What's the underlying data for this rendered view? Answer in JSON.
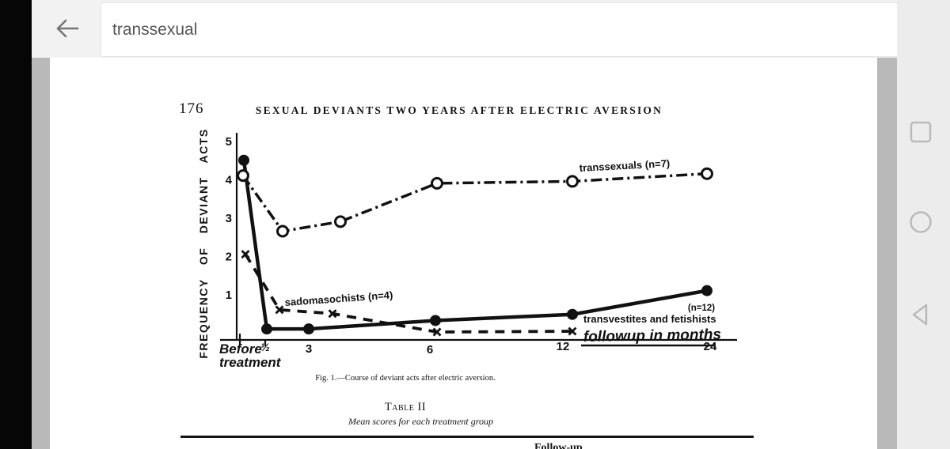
{
  "browser": {
    "search_value": "transsexual",
    "back_icon": "arrow-left-icon",
    "nav_buttons": [
      {
        "label": "recent apps",
        "icon": "square-outline-icon"
      },
      {
        "label": "home",
        "icon": "circle-outline-icon"
      },
      {
        "label": "back",
        "icon": "triangle-left-outline-icon"
      }
    ]
  },
  "page": {
    "page_number": "176",
    "running_title": "SEXUAL DEVIANTS TWO YEARS AFTER ELECTRIC AVERSION",
    "figure_caption": "Fig. 1.—Course of deviant acts after electric aversion.",
    "table_title": "Table II",
    "table_subtitle": "Mean scores for each treatment group",
    "table_partial_header": "Follow-up"
  },
  "chart_data": {
    "type": "line",
    "title": "",
    "xlabel": "followup in months",
    "ylabel": "FREQUENCY OF DEVIANT ACTS",
    "x_categories": [
      "Before treatment",
      "½",
      "3",
      "6",
      "12",
      "24"
    ],
    "x_months": [
      "Before",
      0.5,
      3,
      6,
      12,
      24
    ],
    "ylim": [
      0,
      5
    ],
    "yticks": [
      1,
      2,
      3,
      4,
      5
    ],
    "grid": false,
    "legend_position": "inline-annotations",
    "series": [
      {
        "name": "transsexuals (n=7)",
        "n": 7,
        "marker": "open-circle",
        "line": "dash-dot",
        "values": [
          4.1,
          2.65,
          2.9,
          3.9,
          3.95,
          4.15
        ]
      },
      {
        "name": "transvestites and fetishists (n=12)",
        "n": 12,
        "marker": "filled-circle",
        "line": "solid",
        "values": [
          4.5,
          0.1,
          0.1,
          0.32,
          0.48,
          1.1
        ]
      },
      {
        "name": "sadomasochists (n=4)",
        "n": 4,
        "marker": "x",
        "line": "dashed",
        "values": [
          2.05,
          0.6,
          0.5,
          0.02,
          0.04,
          null
        ]
      }
    ],
    "annotations": [
      "sadomasochists (n=4)",
      "transsexuals (n=7)",
      "(n=12)",
      "transvestites  and  fetishists",
      "followup  in  months"
    ]
  }
}
